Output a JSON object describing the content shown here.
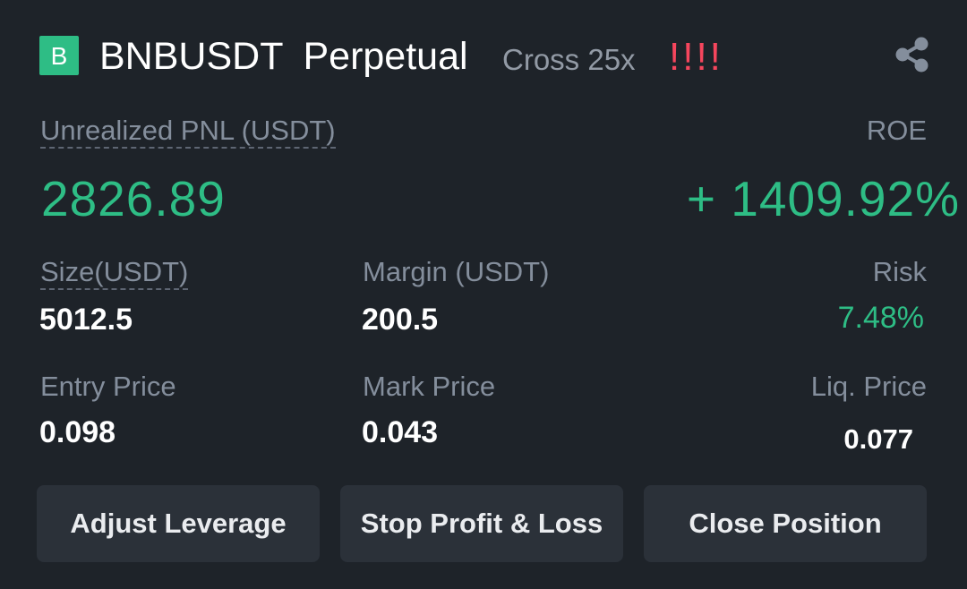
{
  "header": {
    "logo_letter": "B",
    "symbol": "BNBUSDT",
    "contract_type": "Perpetual",
    "margin_mode": "Cross 25x",
    "warning": "!!!!",
    "share_icon": "share-icon"
  },
  "pnl": {
    "label": "Unrealized PNL (USDT)",
    "value": "2826.89",
    "roe_label": "ROE",
    "roe_value": "+ 1409.92%"
  },
  "stats": {
    "size_label": "Size(USDT)",
    "size_value": "5012.5",
    "margin_label": "Margin (USDT)",
    "margin_value": "200.5",
    "risk_label": "Risk",
    "risk_value": "7.48%",
    "entry_label": "Entry Price",
    "entry_value": "0.098",
    "mark_label": "Mark Price",
    "mark_value": "0.043",
    "liq_label": "Liq. Price",
    "liq_value": "0.077"
  },
  "buttons": {
    "adjust_leverage": "Adjust Leverage",
    "stop_profit_loss": "Stop Profit & Loss",
    "close_position": "Close Position"
  },
  "colors": {
    "background": "#1e2329",
    "positive": "#2ebd85",
    "warning": "#f6465d",
    "button_bg": "#2b3139"
  }
}
